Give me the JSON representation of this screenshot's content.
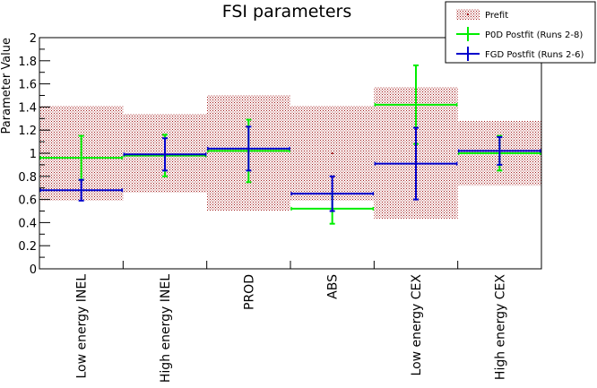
{
  "chart_data": {
    "type": "errorbar",
    "title": "FSI parameters",
    "ylabel": "Parameter Value",
    "xlabel": "",
    "ylim": [
      0,
      2
    ],
    "yticks": [
      "0",
      "0.2",
      "0.4",
      "0.6",
      "0.8",
      "1",
      "1.2",
      "1.4",
      "1.6",
      "1.8",
      "2"
    ],
    "categories": [
      "Low energy INEL",
      "High energy INEL",
      "PROD",
      "ABS",
      "Low energy CEX",
      "High energy CEX"
    ],
    "legend_position": "top-right",
    "series": [
      {
        "name": "Prefit",
        "style": "band",
        "color": "#a01818",
        "values": [
          1.0,
          1.0,
          1.0,
          1.0,
          1.0,
          1.0
        ],
        "errors": [
          0.41,
          0.34,
          0.5,
          0.41,
          0.57,
          0.28
        ]
      },
      {
        "name": "P0D Postfit (Runs 2-8)",
        "style": "errorbar",
        "color": "#00ee00",
        "values": [
          0.96,
          0.98,
          1.02,
          0.52,
          1.42,
          1.0
        ],
        "errors": [
          0.19,
          0.18,
          0.27,
          0.13,
          0.34,
          0.15
        ]
      },
      {
        "name": "FGD Postfit (Runs 2-6)",
        "style": "errorbar",
        "color": "#0000cc",
        "values": [
          0.68,
          0.99,
          1.04,
          0.65,
          0.91,
          1.02
        ],
        "errors": [
          0.09,
          0.14,
          0.19,
          0.15,
          0.31,
          0.12
        ]
      }
    ]
  }
}
